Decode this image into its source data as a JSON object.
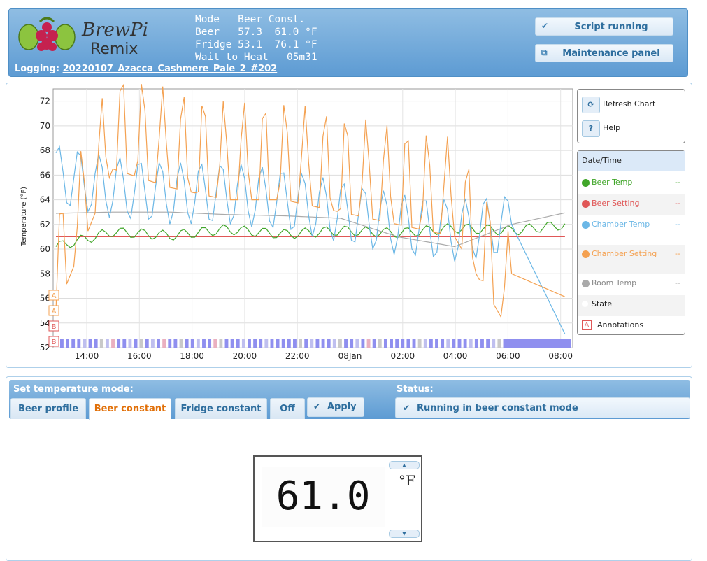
{
  "header": {
    "logo_text_line1": "BrewPi",
    "logo_text_line2": "Remix",
    "status_lines": [
      "Mode   Beer Const.",
      "Beer   57.3  61.0 °F",
      "Fridge 53.1  76.1 °F",
      "Wait to Heat   05m31"
    ],
    "logging_label": "Logging:",
    "logging_name": "20220107_Azacca_Cashmere_Pale_2_#202",
    "script_button": "Script running",
    "maintenance_button": "Maintenance panel"
  },
  "chart_controls": {
    "refresh_label": "Refresh Chart",
    "help_label": "Help",
    "help_icon": "?"
  },
  "legend": {
    "header": "Date/Time",
    "items": [
      {
        "name": "Beer Temp",
        "value": "--",
        "color": "#41a62a"
      },
      {
        "name": "Beer Setting",
        "value": "--",
        "color": "#e05757"
      },
      {
        "name": "Chamber Temp",
        "value": "--",
        "color": "#6bb7e6"
      },
      {
        "name": "Chamber Setting",
        "value": "--",
        "color": "#f4a151"
      },
      {
        "name": "Room Temp",
        "value": "--",
        "color": "#aaaaaa"
      },
      {
        "name": "State",
        "value": "",
        "color": "#ffffff"
      },
      {
        "name": "Annotations",
        "value": "",
        "color": "#e05757",
        "marker": "A"
      }
    ]
  },
  "chart_data": {
    "type": "line",
    "ylabel": "Temperature (°F)",
    "y_ticks": [
      "72",
      "70",
      "68",
      "66",
      "64",
      "62",
      "60",
      "58",
      "56",
      "54",
      "52"
    ],
    "ylim": [
      52,
      73
    ],
    "x_ticks": [
      "14:00",
      "16:00",
      "18:00",
      "20:00",
      "22:00",
      "08Jan",
      "02:00",
      "04:00",
      "06:00",
      "08:00"
    ],
    "grid": true,
    "annotation_markers": [
      "A",
      "A",
      "B",
      "B"
    ],
    "series": [
      {
        "name": "Beer Setting",
        "color": "#e05757",
        "values": [
          61.0,
          61.0,
          61.0,
          61.0,
          61.0,
          61.0,
          61.0,
          61.0,
          61.0,
          61.0
        ]
      },
      {
        "name": "Beer Temp",
        "color": "#41a62a",
        "values": [
          60.2,
          61.4,
          61.1,
          61.6,
          61.2,
          61.5,
          61.3,
          61.7,
          61.5,
          62.0
        ]
      },
      {
        "name": "Room Temp",
        "color": "#aaaaaa",
        "values": [
          62.9,
          63.0,
          63.0,
          62.8,
          62.7,
          62.5,
          61.0,
          60.2,
          62.0,
          63.0
        ]
      },
      {
        "name": "Chamber Temp",
        "color": "#6bb7e6",
        "values": [
          66.0,
          65.0,
          64.5,
          64.5,
          64.0,
          63.0,
          62.0,
          61.5,
          62.0,
          52.5
        ]
      },
      {
        "name": "Chamber Setting",
        "color": "#f4a151",
        "values": [
          60.0,
          71.5,
          70.0,
          69.0,
          69.0,
          68.0,
          67.0,
          66.0,
          58.0,
          56.0
        ]
      }
    ]
  },
  "mode": {
    "title": "Set temperature mode:",
    "status_title": "Status:",
    "tabs": [
      "Beer profile",
      "Beer constant",
      "Fridge constant",
      "Off"
    ],
    "active_tab": "Beer constant",
    "apply_label": "Apply",
    "status_text": "Running in beer constant mode",
    "value": "61.0",
    "unit": "°F"
  }
}
